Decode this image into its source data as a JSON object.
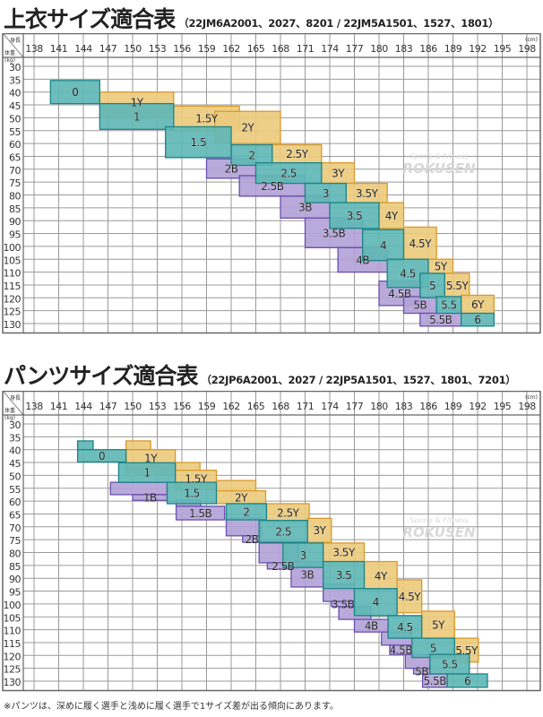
{
  "chart_data": [
    {
      "type": "heatmap",
      "title": "上衣サイズ適合表",
      "subtitle": "（22JM6A2001、2027、8201 / 22JM5A1501、1527、1801）",
      "corner_top": "身長",
      "corner_bottom": "体重",
      "x_unit": "(cm)",
      "y_unit": "(kg)",
      "x_ticks": [
        138,
        141,
        144,
        147,
        150,
        153,
        156,
        159,
        162,
        165,
        168,
        171,
        174,
        177,
        180,
        183,
        186,
        189,
        192,
        195,
        198
      ],
      "y_ticks": [
        30,
        35,
        40,
        45,
        50,
        55,
        60,
        65,
        70,
        75,
        80,
        85,
        90,
        95,
        100,
        105,
        110,
        115,
        120,
        125,
        130
      ],
      "xlabel_axis": "身長 (cm)",
      "ylabel_axis": "体重 (kg)",
      "grid": true,
      "regions": [
        {
          "label": "1Y",
          "kind": "Y",
          "rects": [
            [
              146,
              155,
              40,
              50
            ]
          ]
        },
        {
          "label": "1.5Y",
          "kind": "Y",
          "rects": [
            [
              155,
              163,
              45.5,
              55
            ]
          ]
        },
        {
          "label": "2Y",
          "kind": "Y",
          "rects": [
            [
              160,
              168,
              47.5,
              60
            ]
          ]
        },
        {
          "label": "2.5Y",
          "kind": "Y",
          "rects": [
            [
              167,
              173,
              60.5,
              67.5
            ]
          ]
        },
        {
          "label": "3Y",
          "kind": "Y",
          "rects": [
            [
              173,
              177,
              67.5,
              75.5
            ]
          ]
        },
        {
          "label": "3.5Y",
          "kind": "Y",
          "rects": [
            [
              176,
              181,
              75.5,
              83
            ]
          ]
        },
        {
          "label": "4Y",
          "kind": "Y",
          "rects": [
            [
              180,
              183,
              83,
              93
            ]
          ]
        },
        {
          "label": "4.5Y",
          "kind": "Y",
          "rects": [
            [
              183,
              187,
              92.5,
              105
            ]
          ]
        },
        {
          "label": "5Y",
          "kind": "Y",
          "rects": [
            [
              186,
              189,
              105,
              110.5
            ]
          ]
        },
        {
          "label": "5.5Y",
          "kind": "Y",
          "rects": [
            [
              188,
              191,
              110.5,
              120
            ]
          ]
        },
        {
          "label": "6Y",
          "kind": "Y",
          "rects": [
            [
              190,
              194,
              119,
              126
            ]
          ]
        },
        {
          "label": "2B",
          "kind": "B",
          "rects": [
            [
              159,
              165,
              66,
              73.5
            ]
          ]
        },
        {
          "label": "2.5B",
          "kind": "B",
          "rects": [
            [
              163,
              171,
              72.5,
              80.5
            ]
          ]
        },
        {
          "label": "3B",
          "kind": "B",
          "rects": [
            [
              168,
              174,
              80.5,
              89
            ]
          ]
        },
        {
          "label": "3.5B",
          "kind": "B",
          "rects": [
            [
              171,
              178,
              89,
              100.5
            ]
          ]
        },
        {
          "label": "4B",
          "kind": "B",
          "rects": [
            [
              175,
              181,
              100.5,
              110
            ]
          ]
        },
        {
          "label": "4.5B",
          "kind": "B",
          "rects": [
            [
              180,
              185,
              113.5,
              123
            ]
          ]
        },
        {
          "label": "5B",
          "kind": "B",
          "rects": [
            [
              183,
              187,
              119.5,
              126
            ]
          ]
        },
        {
          "label": "5.5B",
          "kind": "B",
          "rects": [
            [
              185,
              190,
              126,
              131
            ]
          ]
        },
        {
          "label": "0",
          "kind": "S",
          "rects": [
            [
              140,
              146,
              35.5,
              44.5
            ]
          ]
        },
        {
          "label": "1",
          "kind": "S",
          "rects": [
            [
              146,
              155,
              44.5,
              54.5
            ]
          ]
        },
        {
          "label": "1.5",
          "kind": "S",
          "rects": [
            [
              154,
              162,
              53.5,
              65.5
            ]
          ]
        },
        {
          "label": "2",
          "kind": "S",
          "rects": [
            [
              162,
              167,
              60.5,
              68.5
            ]
          ]
        },
        {
          "label": "2.5",
          "kind": "S",
          "rects": [
            [
              165,
              173,
              67.5,
              75.5
            ]
          ]
        },
        {
          "label": "3",
          "kind": "S",
          "rects": [
            [
              171,
              176,
              75.5,
              83
            ]
          ]
        },
        {
          "label": "3.5",
          "kind": "S",
          "rects": [
            [
              174,
              180,
              83,
              93
            ]
          ]
        },
        {
          "label": "4",
          "kind": "S",
          "rects": [
            [
              178,
              183,
              93.5,
              105.5
            ]
          ]
        },
        {
          "label": "4.5",
          "kind": "S",
          "rects": [
            [
              181,
              186,
              105,
              116
            ]
          ]
        },
        {
          "label": "5",
          "kind": "S",
          "rects": [
            [
              185,
              188,
              110.5,
              120
            ]
          ]
        },
        {
          "label": "5.5",
          "kind": "S",
          "rects": [
            [
              187,
              190,
              119.5,
              126
            ]
          ]
        },
        {
          "label": "6",
          "kind": "S",
          "rects": [
            [
              190,
              194,
              126,
              131
            ]
          ]
        }
      ]
    },
    {
      "type": "heatmap",
      "title": "パンツサイズ適合表",
      "subtitle": "（22JP6A2001、2027 / 22JP5A1501、1527、1801、7201）",
      "corner_top": "身長",
      "corner_bottom": "体重",
      "x_unit": "(cm)",
      "y_unit": "(kg)",
      "x_ticks": [
        138,
        141,
        144,
        147,
        150,
        153,
        156,
        159,
        162,
        165,
        168,
        171,
        174,
        177,
        180,
        183,
        186,
        189,
        192,
        195,
        198
      ],
      "y_ticks": [
        30,
        35,
        40,
        45,
        50,
        55,
        60,
        65,
        70,
        75,
        80,
        85,
        90,
        95,
        100,
        105,
        110,
        115,
        120,
        125,
        130
      ],
      "xlabel_axis": "身長 (cm)",
      "ylabel_axis": "体重 (kg)",
      "grid": true,
      "regions": [
        {
          "label": "1Y",
          "kind": "Y",
          "rects": [
            [
              149.2,
              152.2,
              36.6,
              40
            ],
            [
              149.2,
              155.2,
              40,
              50
            ]
          ]
        },
        {
          "label": "1.5Y",
          "kind": "Y",
          "rects": [
            [
              155.2,
              158.2,
              45,
              48
            ],
            [
              155.2,
              160.2,
              48,
              55.5
            ]
          ]
        },
        {
          "label": "2Y",
          "kind": "Y",
          "rects": [
            [
              160.2,
              165,
              52,
              56
            ],
            [
              160.2,
              166.2,
              56,
              61
            ]
          ]
        },
        {
          "label": "2.5Y",
          "kind": "Y",
          "rects": [
            [
              166.3,
              171.5,
              61,
              68
            ]
          ]
        },
        {
          "label": "3Y",
          "kind": "Y",
          "rects": [
            [
              171.3,
              174.2,
              66.7,
              76
            ]
          ]
        },
        {
          "label": "3.5Y",
          "kind": "Y",
          "rects": [
            [
              173.2,
              178.2,
              76.3,
              83.5
            ]
          ]
        },
        {
          "label": "4Y",
          "kind": "Y",
          "rects": [
            [
              178.2,
              182.2,
              83.5,
              94.5
            ]
          ]
        },
        {
          "label": "4.5Y",
          "kind": "Y",
          "rects": [
            [
              182.2,
              185.2,
              90.6,
              103.4
            ]
          ]
        },
        {
          "label": "5Y",
          "kind": "Y",
          "rects": [
            [
              185.2,
              189.2,
              102.8,
              113.3
            ]
          ]
        },
        {
          "label": "5.5Y",
          "kind": "Y",
          "rects": [
            [
              189.2,
              192.1,
              113.3,
              122.6
            ]
          ]
        },
        {
          "label": "1B",
          "kind": "B",
          "rects": [
            [
              147.3,
              154.2,
              52.7,
              57.5
            ],
            [
              150,
              154.2,
              57.5,
              59.7
            ]
          ]
        },
        {
          "label": "1.5B",
          "kind": "B",
          "rects": [
            [
              155.3,
              158.3,
              59.7,
              62
            ],
            [
              155.3,
              161.2,
              62,
              67.3
            ]
          ]
        },
        {
          "label": "2B",
          "kind": "B",
          "rects": [
            [
              161.4,
              165.6,
              66.7,
              73.5
            ],
            [
              163.4,
              165.6,
              73.5,
              76
            ]
          ]
        },
        {
          "label": "2.5B",
          "kind": "B",
          "rects": [
            [
              165.4,
              170.2,
              76.3,
              84
            ],
            [
              166.4,
              170.2,
              84,
              86.4
            ]
          ]
        },
        {
          "label": "3B",
          "kind": "B",
          "rects": [
            [
              169.3,
              173.2,
              83.5,
              93.4
            ]
          ]
        },
        {
          "label": "3.5B",
          "kind": "B",
          "rects": [
            [
              173.2,
              177,
              92.3,
              99
            ],
            [
              174.2,
              177,
              99,
              101
            ]
          ]
        },
        {
          "label": "4B",
          "kind": "B",
          "rects": [
            [
              175.1,
              179,
              101,
              106
            ],
            [
              177,
              181.1,
              106,
              110.9
            ]
          ]
        },
        {
          "label": "4.5B",
          "kind": "B",
          "rects": [
            [
              180.3,
              184,
              110.9,
              116
            ],
            [
              181.3,
              184,
              116,
              119.6
            ]
          ]
        },
        {
          "label": "5B",
          "kind": "B",
          "rects": [
            [
              183.2,
              186.2,
              119.6,
              125
            ],
            [
              184.2,
              186.2,
              125,
              127.2
            ]
          ]
        },
        {
          "label": "5.5B",
          "kind": "B",
          "rects": [
            [
              185.3,
              188.3,
              127.2,
              132.4
            ]
          ]
        },
        {
          "label": "0",
          "kind": "S",
          "rects": [
            [
              143.3,
              145.2,
              36.6,
              40
            ],
            [
              143.3,
              149.2,
              40,
              44.8
            ]
          ]
        },
        {
          "label": "1",
          "kind": "S",
          "rects": [
            [
              148.3,
              155.2,
              45.1,
              52.7
            ]
          ]
        },
        {
          "label": "1.5",
          "kind": "S",
          "rects": [
            [
              154.2,
              160.2,
              52.7,
              61
            ]
          ]
        },
        {
          "label": "2",
          "kind": "S",
          "rects": [
            [
              161.4,
              166.3,
              61,
              67.3
            ]
          ]
        },
        {
          "label": "2.5",
          "kind": "S",
          "rects": [
            [
              165.4,
              171.3,
              67.5,
              76
            ]
          ]
        },
        {
          "label": "3",
          "kind": "S",
          "rects": [
            [
              168.3,
              173.2,
              76.3,
              85.8
            ]
          ]
        },
        {
          "label": "3.5",
          "kind": "S",
          "rects": [
            [
              173.2,
              178.2,
              83.5,
              94
            ]
          ]
        },
        {
          "label": "4",
          "kind": "S",
          "rects": [
            [
              177,
              182.2,
              94,
              104.5
            ]
          ]
        },
        {
          "label": "4.5",
          "kind": "S",
          "rects": [
            [
              181.1,
              185.2,
              104.5,
              113.3
            ]
          ]
        },
        {
          "label": "5",
          "kind": "S",
          "rects": [
            [
              184,
              189.2,
              113.3,
              120.8
            ]
          ]
        },
        {
          "label": "5.5",
          "kind": "S",
          "rects": [
            [
              186.2,
              191,
              119.6,
              127.2
            ]
          ]
        },
        {
          "label": "6",
          "kind": "S",
          "rects": [
            [
              188.3,
              193.2,
              127.2,
              132.4
            ]
          ]
        }
      ]
    }
  ],
  "colors": {
    "Y": {
      "fill": "#eccb7e",
      "stroke": "#d99a2b"
    },
    "B": {
      "fill": "#b3a3d8",
      "stroke": "#6b4fae"
    },
    "S": {
      "fill": "#5fb7b5",
      "stroke": "#1d8488"
    },
    "grid": "#9a9a9a",
    "frame": "#666666"
  },
  "watermark": {
    "line1": "Sports & Fitness",
    "line2": "ROKUSEN"
  },
  "footnote": "※パンツは、深めに履く選手と浅めに履く選手で1サイズ差が出る傾向にあります。"
}
